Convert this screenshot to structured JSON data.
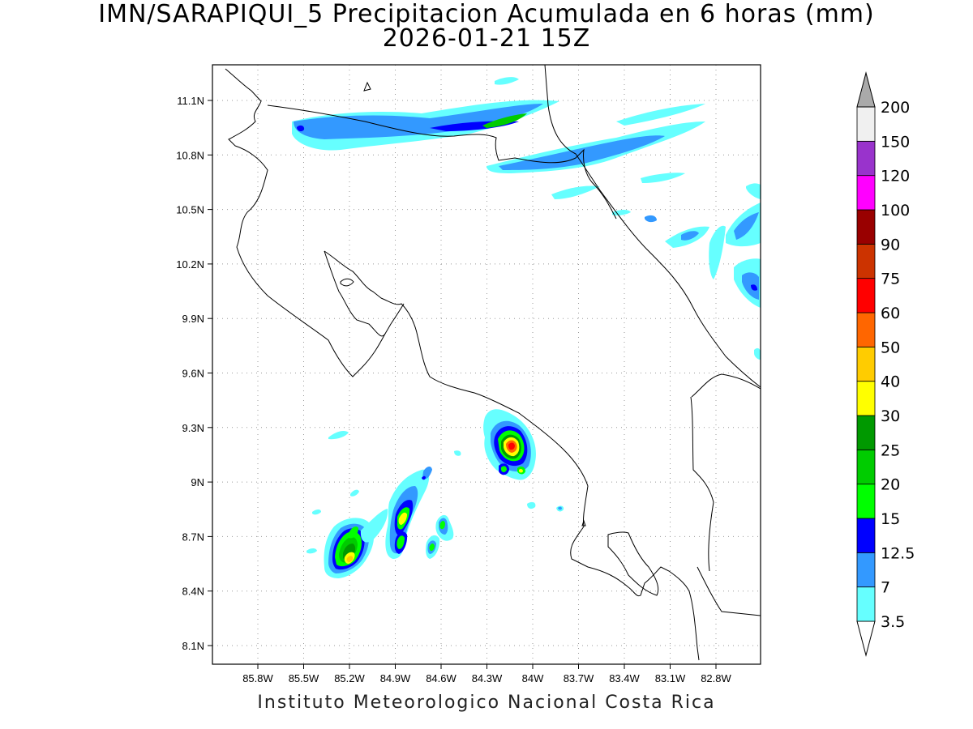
{
  "title": {
    "line1": "IMN/SARAPIQUI_5 Precipitacion Acumulada en 6 horas (mm)",
    "line2": "2026-01-21 15Z"
  },
  "footer": "Instituto Meteorologico Nacional Costa Rica",
  "axes": {
    "x_ticks": [
      "85.8W",
      "85.5W",
      "85.2W",
      "84.9W",
      "84.6W",
      "84.3W",
      "84W",
      "83.7W",
      "83.4W",
      "83.1W",
      "82.8W"
    ],
    "y_ticks": [
      "11.1N",
      "10.8N",
      "10.5N",
      "10.2N",
      "9.9N",
      "9.6N",
      "9.3N",
      "9N",
      "8.7N",
      "8.4N",
      "8.1N"
    ],
    "lon_range": [
      -85.98,
      -82.97
    ],
    "lat_range": [
      8.01,
      11.28
    ],
    "grid": "dotted"
  },
  "colorbar": {
    "levels": [
      "3.5",
      "7",
      "12.5",
      "15",
      "20",
      "25",
      "30",
      "40",
      "50",
      "60",
      "75",
      "90",
      "100",
      "120",
      "150",
      "200"
    ],
    "colors": [
      "#66ffff",
      "#3399ff",
      "#0000ff",
      "#00ff00",
      "#00cc00",
      "#009900",
      "#ffff00",
      "#ffcc00",
      "#ff6600",
      "#ff0000",
      "#cc3300",
      "#990000",
      "#ff00ff",
      "#9933cc",
      "#f0f0f0",
      "#aaaaaa"
    ],
    "below_color": "#ffffff"
  },
  "precip_cells": [
    {
      "lon": -85.4,
      "lat": 10.95,
      "mm": 7
    },
    {
      "lon": -84.62,
      "lat": 11.01,
      "mm": 12.5
    },
    {
      "lon": -84.18,
      "lat": 11.04,
      "mm": 15
    },
    {
      "lon": -84.05,
      "lat": 10.75,
      "mm": 7
    },
    {
      "lon": -83.6,
      "lat": 10.85,
      "mm": 7
    },
    {
      "lon": -83.15,
      "lat": 10.35,
      "mm": 7
    },
    {
      "lon": -83.05,
      "lat": 10.06,
      "mm": 12.5
    },
    {
      "lon": -84.06,
      "lat": 9.2,
      "mm": 75
    },
    {
      "lon": -85.1,
      "lat": 8.58,
      "mm": 40
    },
    {
      "lon": -84.87,
      "lat": 8.83,
      "mm": 30
    },
    {
      "lon": -84.6,
      "lat": 8.65,
      "mm": 20
    }
  ]
}
